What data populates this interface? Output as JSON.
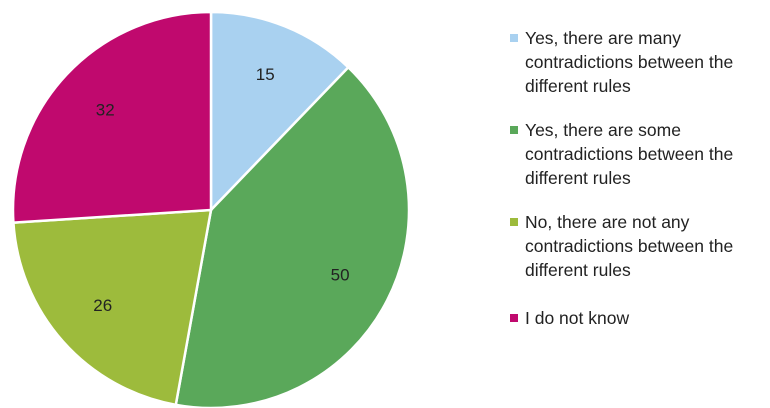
{
  "chart_data": {
    "type": "pie",
    "categories": [
      "Yes, there are many contradictions between the different rules",
      "Yes, there are some contradictions between the different rules",
      "No, there are not any contradictions between the different rules",
      "I do not know"
    ],
    "values": [
      15,
      50,
      26,
      32
    ],
    "colors": [
      "#a9d1f0",
      "#5aa85a",
      "#9dbb3c",
      "#c0096e"
    ],
    "legend_lines": [
      [
        "Yes, there are many",
        "contradictions between the",
        "different rules"
      ],
      [
        "Yes, there are some",
        "contradictions between the",
        "different rules"
      ],
      [
        "No, there are not any",
        "contradictions between the",
        "different rules"
      ],
      [
        "I do not know"
      ]
    ],
    "start_angle_deg": 0,
    "direction": "clockwise",
    "legend_position": "right",
    "data_labels": true
  }
}
